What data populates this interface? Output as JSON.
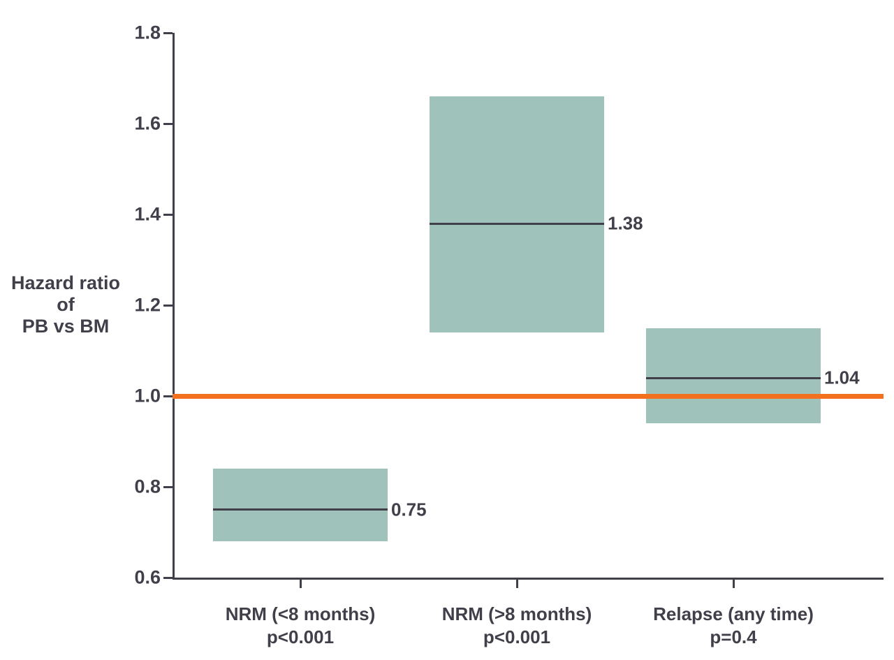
{
  "colors": {
    "background": "#ffffff",
    "box_fill": "#9fc2ba",
    "line": "#413f4a",
    "reference_line": "#f3701f",
    "text": "#413f4a"
  },
  "chart_data": {
    "type": "box",
    "title": "",
    "ylabel": "Hazard ratio of PB vs BM",
    "ylabel_lines": [
      "Hazard ratio",
      "of",
      "PB vs BM"
    ],
    "ylim": [
      0.6,
      1.8
    ],
    "yticks": [
      {
        "value": 1.8,
        "label": "1.8"
      },
      {
        "value": 1.6,
        "label": "1.6"
      },
      {
        "value": 1.4,
        "label": "1.4"
      },
      {
        "value": 1.2,
        "label": "1.2"
      },
      {
        "value": 1.0,
        "label": "1.0"
      },
      {
        "value": 0.8,
        "label": "0.8"
      },
      {
        "value": 0.6,
        "label": "0.6"
      }
    ],
    "reference_line": 1.0,
    "grid": false,
    "legend": false,
    "categories": [
      "NRM (<8 months)",
      "NRM (>8 months)",
      "Relapse (any time)"
    ],
    "series": [
      {
        "category": "NRM (<8 months)",
        "p_value": "p<0.001",
        "hazard_ratio": 0.75,
        "hazard_ratio_label": "0.75",
        "ci_low": 0.68,
        "ci_high": 0.84
      },
      {
        "category": "NRM (>8 months)",
        "p_value": "p<0.001",
        "hazard_ratio": 1.38,
        "hazard_ratio_label": "1.38",
        "ci_low": 1.14,
        "ci_high": 1.66
      },
      {
        "category": "Relapse (any time)",
        "p_value": "p=0.4",
        "hazard_ratio": 1.04,
        "hazard_ratio_label": "1.04",
        "ci_low": 0.94,
        "ci_high": 1.15
      }
    ]
  }
}
